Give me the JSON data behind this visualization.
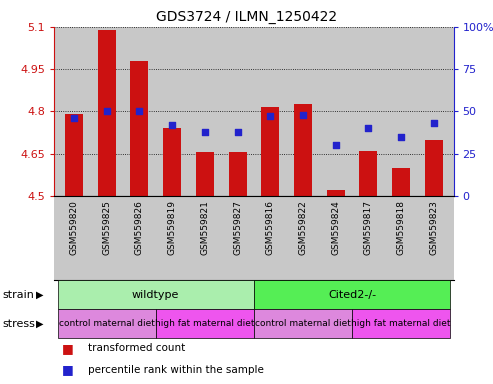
{
  "title": "GDS3724 / ILMN_1250422",
  "samples": [
    "GSM559820",
    "GSM559825",
    "GSM559826",
    "GSM559819",
    "GSM559821",
    "GSM559827",
    "GSM559816",
    "GSM559822",
    "GSM559824",
    "GSM559817",
    "GSM559818",
    "GSM559823"
  ],
  "red_values": [
    4.79,
    5.09,
    4.98,
    4.74,
    4.655,
    4.655,
    4.815,
    4.825,
    4.52,
    4.66,
    4.6,
    4.7
  ],
  "blue_values": [
    46,
    50,
    50,
    42,
    38,
    38,
    47,
    48,
    30,
    40,
    35,
    43
  ],
  "ylim_left": [
    4.5,
    5.1
  ],
  "ylim_right": [
    0,
    100
  ],
  "yticks_left": [
    4.5,
    4.65,
    4.8,
    4.95,
    5.1
  ],
  "ytick_labels_left": [
    "4.5",
    "4.65",
    "4.8",
    "4.95",
    "5.1"
  ],
  "yticks_right": [
    0,
    25,
    50,
    75,
    100
  ],
  "ytick_labels_right": [
    "0",
    "25",
    "50",
    "75",
    "100%"
  ],
  "red_color": "#cc1111",
  "blue_color": "#2222cc",
  "bar_bottom": 4.5,
  "dotted_lines": [
    4.65,
    4.8,
    4.95,
    5.1
  ],
  "strain_groups": [
    {
      "label": "wildtype",
      "start": 0,
      "end": 6,
      "color": "#aaeead"
    },
    {
      "label": "Cited2-/-",
      "start": 6,
      "end": 12,
      "color": "#55ee55"
    }
  ],
  "stress_groups": [
    {
      "label": "control maternal diet",
      "start": 0,
      "end": 3,
      "color": "#dd88dd"
    },
    {
      "label": "high fat maternal diet",
      "start": 3,
      "end": 6,
      "color": "#ee55ee"
    },
    {
      "label": "control maternal diet",
      "start": 6,
      "end": 9,
      "color": "#dd88dd"
    },
    {
      "label": "high fat maternal diet",
      "start": 9,
      "end": 12,
      "color": "#ee55ee"
    }
  ],
  "bg_color": "#c8c8c8",
  "legend_items": [
    {
      "label": "transformed count",
      "color": "#cc1111"
    },
    {
      "label": "percentile rank within the sample",
      "color": "#2222cc"
    }
  ],
  "fig_width": 4.93,
  "fig_height": 3.84
}
